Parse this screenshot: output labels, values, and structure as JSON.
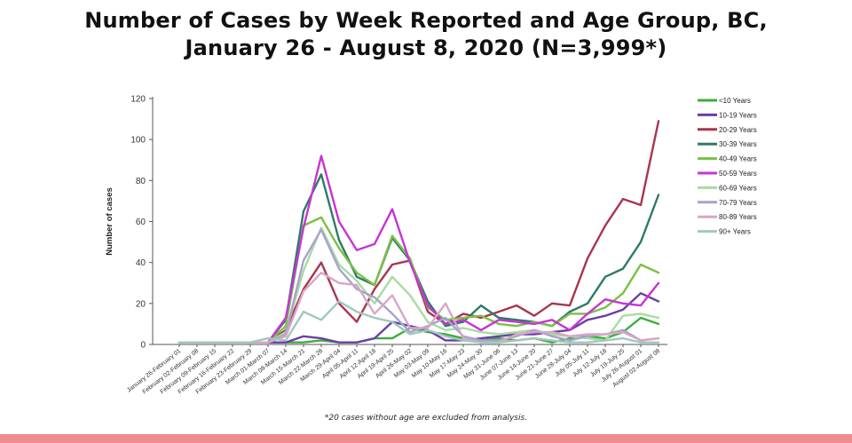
{
  "chart_data": {
    "type": "line",
    "title": "Number of Cases by Week Reported and Age Group, BC,",
    "subtitle": "January 26 - August 8, 2020 (N=3,999*)",
    "ylabel": "Number of cases",
    "xlabel": "",
    "ylim": [
      0,
      120
    ],
    "yticks": [
      0,
      20,
      40,
      60,
      80,
      100,
      120
    ],
    "grid": false,
    "legend_position": "right",
    "footnote": "*20 cases without age are excluded from analysis.",
    "categories": [
      "January 26-February 01",
      "February 02-February 08",
      "February 09-February 15",
      "February 16-February 22",
      "February 23-February 29",
      "March 01-March 07",
      "March 08-March 14",
      "March 15-March 21",
      "March 22-March 28",
      "March 29-April 04",
      "April 05-April 11",
      "April 12-April 18",
      "April 19-April 25",
      "April 26-May 02",
      "May 03-May 09",
      "May 10-May 16",
      "May 17-May 23",
      "May 24-May 30",
      "May 31-June 06",
      "June 07-June 13",
      "June 14-June 20",
      "June 21-June 27",
      "June 28-July 04",
      "July 05-July 11",
      "July 12-July 18",
      "July 19-July 25",
      "July 26-August 01",
      "August 02-August 08"
    ],
    "series": [
      {
        "name": "<10 Years",
        "color": "#3cae3c",
        "values": [
          1,
          1,
          1,
          1,
          1,
          1,
          1,
          1,
          2,
          1,
          1,
          3,
          3,
          8,
          6,
          5,
          3,
          2,
          3,
          2,
          3,
          1,
          3,
          4,
          3,
          6,
          13,
          10
        ]
      },
      {
        "name": "10-19 Years",
        "color": "#6b3fa8",
        "values": [
          1,
          1,
          1,
          1,
          1,
          1,
          1,
          4,
          3,
          1,
          1,
          3,
          11,
          9,
          7,
          2,
          2,
          3,
          4,
          5,
          5,
          6,
          7,
          12,
          14,
          17,
          25,
          21
        ]
      },
      {
        "name": "20-29 Years",
        "color": "#a8354f",
        "values": [
          1,
          1,
          1,
          1,
          1,
          1,
          7,
          27,
          40,
          20,
          11,
          27,
          39,
          41,
          16,
          10,
          15,
          13,
          16,
          19,
          14,
          20,
          19,
          42,
          58,
          71,
          68,
          109
        ]
      },
      {
        "name": "30-39 Years",
        "color": "#2f7a68",
        "values": [
          1,
          1,
          1,
          1,
          1,
          1,
          12,
          65,
          83,
          51,
          33,
          29,
          52,
          41,
          21,
          9,
          11,
          19,
          13,
          12,
          11,
          9,
          16,
          20,
          33,
          37,
          50,
          73
        ]
      },
      {
        "name": "40-49 Years",
        "color": "#7ac142",
        "values": [
          1,
          1,
          1,
          1,
          1,
          1,
          9,
          58,
          62,
          47,
          35,
          29,
          53,
          42,
          18,
          12,
          13,
          14,
          10,
          9,
          11,
          9,
          15,
          15,
          18,
          25,
          39,
          35
        ]
      },
      {
        "name": "50-59 Years",
        "color": "#c734d6",
        "values": [
          1,
          1,
          1,
          1,
          1,
          1,
          13,
          57,
          92,
          60,
          46,
          49,
          66,
          40,
          19,
          10,
          12,
          7,
          12,
          11,
          10,
          12,
          7,
          15,
          22,
          20,
          19,
          30
        ]
      },
      {
        "name": "60-69 Years",
        "color": "#a8dca0",
        "values": [
          1,
          1,
          1,
          1,
          1,
          1,
          6,
          36,
          57,
          39,
          31,
          20,
          33,
          24,
          11,
          7,
          8,
          6,
          5,
          6,
          7,
          5,
          4,
          3,
          2,
          14,
          15,
          13
        ]
      },
      {
        "name": "70-79 Years",
        "color": "#a7a2cf",
        "values": [
          1,
          1,
          1,
          1,
          1,
          1,
          5,
          41,
          56,
          37,
          27,
          23,
          15,
          6,
          9,
          13,
          4,
          2,
          2,
          4,
          7,
          4,
          2,
          4,
          5,
          7,
          2,
          3
        ]
      },
      {
        "name": "80-89 Years",
        "color": "#d9a6c6",
        "values": [
          1,
          1,
          1,
          1,
          1,
          1,
          4,
          26,
          35,
          30,
          29,
          15,
          24,
          8,
          8,
          20,
          3,
          1,
          1,
          5,
          6,
          6,
          4,
          5,
          5,
          6,
          2,
          3
        ]
      },
      {
        "name": "90+ Years",
        "color": "#9fc9bd",
        "values": [
          1,
          1,
          1,
          1,
          1,
          3,
          2,
          16,
          12,
          21,
          16,
          13,
          11,
          5,
          7,
          4,
          2,
          1,
          1,
          2,
          3,
          2,
          1,
          1,
          2,
          3,
          1,
          1
        ]
      }
    ]
  }
}
